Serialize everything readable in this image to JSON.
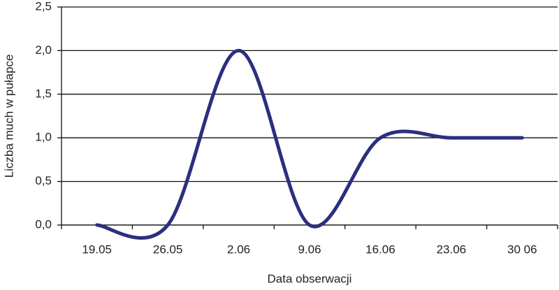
{
  "chart_data": {
    "type": "line",
    "x_label": "Data obserwacji",
    "y_label": "Liczba much w pułapce",
    "categories": [
      "19.05",
      "26.05",
      "2.06",
      "9.06",
      "16.06",
      "23.06",
      "30 06"
    ],
    "values": [
      0,
      0,
      2,
      0,
      1,
      1,
      1
    ],
    "color": "#2b2f7e",
    "smooth": true,
    "ylim": [
      0,
      2.5
    ],
    "yticks": [
      {
        "value": 0,
        "label": "0,0"
      },
      {
        "value": 0.5,
        "label": "0,5"
      },
      {
        "value": 1,
        "label": "1,0"
      },
      {
        "value": 1.5,
        "label": "1,5"
      },
      {
        "value": 2,
        "label": "2,0"
      },
      {
        "value": 2.5,
        "label": "2,5"
      }
    ],
    "grid": true
  }
}
